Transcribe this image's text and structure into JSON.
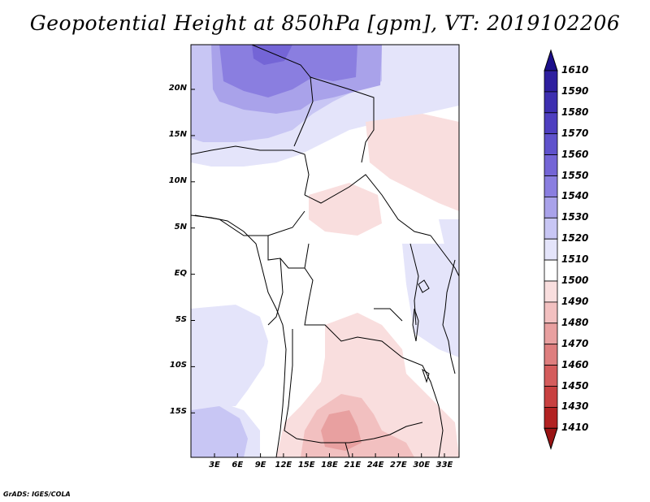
{
  "title": "Geopotential Height at 850hPa [gpm], VT: 2019102206",
  "credit": "GrADS: IGES/COLA",
  "map": {
    "variable": "Geopotential Height",
    "level": "850hPa",
    "units": "gpm",
    "valid_time": "2019102206",
    "region": "Central Africa",
    "lon_labels": [
      "3E",
      "6E",
      "9E",
      "12E",
      "15E",
      "18E",
      "21E",
      "24E",
      "27E",
      "30E",
      "33E"
    ],
    "lat_labels": [
      "20N",
      "15N",
      "10N",
      "5N",
      "EQ",
      "5S",
      "10S",
      "15S"
    ]
  },
  "colorbar": {
    "levels": [
      "1610",
      "1590",
      "1580",
      "1570",
      "1560",
      "1550",
      "1540",
      "1530",
      "1520",
      "1510",
      "1500",
      "1490",
      "1480",
      "1470",
      "1460",
      "1450",
      "1430",
      "1410"
    ],
    "colors": [
      "#1c0f8a",
      "#2e1f9f",
      "#3d2fb0",
      "#4e3fc0",
      "#5f52cc",
      "#7465d6",
      "#8a7ee0",
      "#a9a2ea",
      "#c8c6f4",
      "#e4e4fa",
      "#ffffff",
      "#f9dede",
      "#f2c0c0",
      "#e8a0a0",
      "#de7e7e",
      "#d45c5c",
      "#c84040",
      "#b22222",
      "#9a1414"
    ]
  }
}
